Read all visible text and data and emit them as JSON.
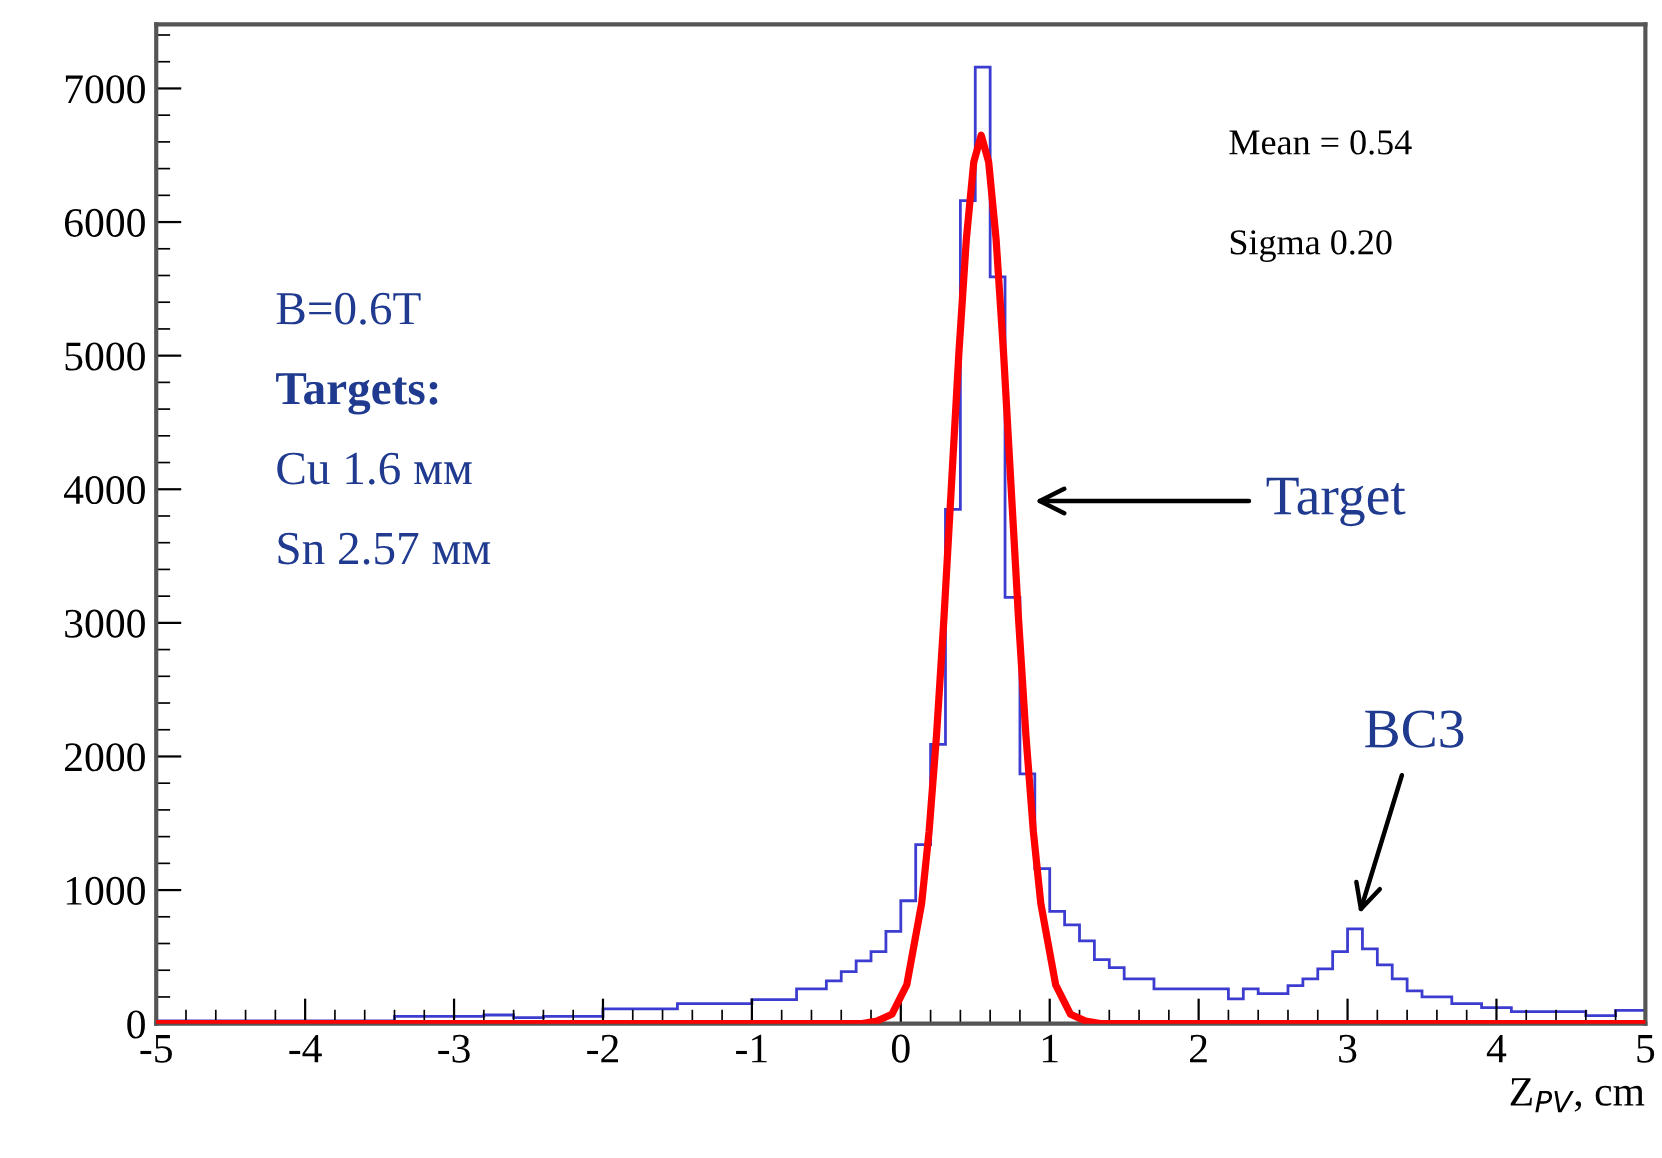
{
  "chart_data": {
    "type": "histogram",
    "xlabel": "Z$_{PV}$, cm",
    "xlim": [
      -5,
      5
    ],
    "ylim": [
      0,
      7480
    ],
    "xticks": [
      -5,
      -4,
      -3,
      -2,
      -1,
      0,
      1,
      2,
      3,
      4,
      5
    ],
    "yticks": [
      0,
      1000,
      2000,
      3000,
      4000,
      5000,
      6000,
      7000
    ],
    "grid": false,
    "series": [
      {
        "color": "#3c3cd0",
        "bins": [
          -5.0,
          -4.9,
          -4.8,
          -4.7,
          -4.6,
          -4.5,
          -4.4,
          -4.3,
          -4.2,
          -4.1,
          -4.0,
          -3.9,
          -3.8,
          -3.7,
          -3.6,
          -3.5,
          -3.4,
          -3.3,
          -3.2,
          -3.1,
          -3.0,
          -2.9,
          -2.8,
          -2.7,
          -2.6,
          -2.5,
          -2.4,
          -2.3,
          -2.2,
          -2.1,
          -2.0,
          -1.9,
          -1.8,
          -1.7,
          -1.6,
          -1.5,
          -1.4,
          -1.3,
          -1.2,
          -1.1,
          -1.0,
          -0.9,
          -0.8,
          -0.7,
          -0.6,
          -0.5,
          -0.4,
          -0.3,
          -0.2,
          -0.1,
          0.0,
          0.1,
          0.2,
          0.3,
          0.4,
          0.5,
          0.6,
          0.7,
          0.8,
          0.9,
          1.0,
          1.1,
          1.2,
          1.3,
          1.4,
          1.5,
          1.6,
          1.7,
          1.8,
          1.9,
          2.0,
          2.1,
          2.2,
          2.3,
          2.4,
          2.5,
          2.6,
          2.7,
          2.8,
          2.9,
          3.0,
          3.1,
          3.2,
          3.3,
          3.4,
          3.5,
          3.6,
          3.7,
          3.8,
          3.9,
          4.0,
          4.1,
          4.2,
          4.3,
          4.4,
          4.5,
          4.6,
          4.7,
          4.8,
          4.9,
          5.0
        ],
        "values": [
          20,
          20,
          20,
          20,
          20,
          20,
          20,
          20,
          20,
          20,
          20,
          20,
          20,
          20,
          20,
          20,
          55,
          55,
          55,
          55,
          55,
          55,
          65,
          65,
          45,
          45,
          55,
          55,
          55,
          55,
          110,
          110,
          110,
          110,
          110,
          150,
          150,
          150,
          150,
          150,
          180,
          180,
          180,
          260,
          260,
          320,
          390,
          470,
          540,
          690,
          920,
          1340,
          2090,
          3850,
          6160,
          7160,
          5590,
          3190,
          1870,
          1160,
          840,
          740,
          620,
          480,
          420,
          335,
          335,
          260,
          260,
          260,
          260,
          260,
          185,
          260,
          225,
          225,
          285,
          335,
          410,
          540,
          710,
          560,
          440,
          335,
          245,
          200,
          200,
          150,
          150,
          120,
          120,
          90,
          90,
          90,
          90,
          90,
          60,
          60,
          100,
          100
        ]
      },
      {
        "type": "line",
        "color": "#ff0000",
        "x": [
          -5,
          -0.26,
          -0.16,
          -0.06,
          0.04,
          0.14,
          0.19,
          0.24,
          0.29,
          0.34,
          0.39,
          0.44,
          0.49,
          0.54,
          0.59,
          0.64,
          0.69,
          0.74,
          0.79,
          0.84,
          0.89,
          0.94,
          1.04,
          1.14,
          1.24,
          1.34,
          5
        ],
        "values": [
          0,
          0,
          20,
          70,
          290,
          900,
          1440,
          2160,
          3040,
          4030,
          5020,
          5870,
          6450,
          6650,
          6450,
          5870,
          5020,
          4030,
          3040,
          2160,
          1440,
          900,
          290,
          70,
          20,
          0,
          0
        ]
      }
    ],
    "annotations": [
      "B=0.6T",
      "Targets:",
      "Cu 1.6 мм",
      "Sn 2.57 мм",
      "Mean = 0.54",
      "Sigma 0.20",
      "Target",
      "BC3"
    ]
  }
}
